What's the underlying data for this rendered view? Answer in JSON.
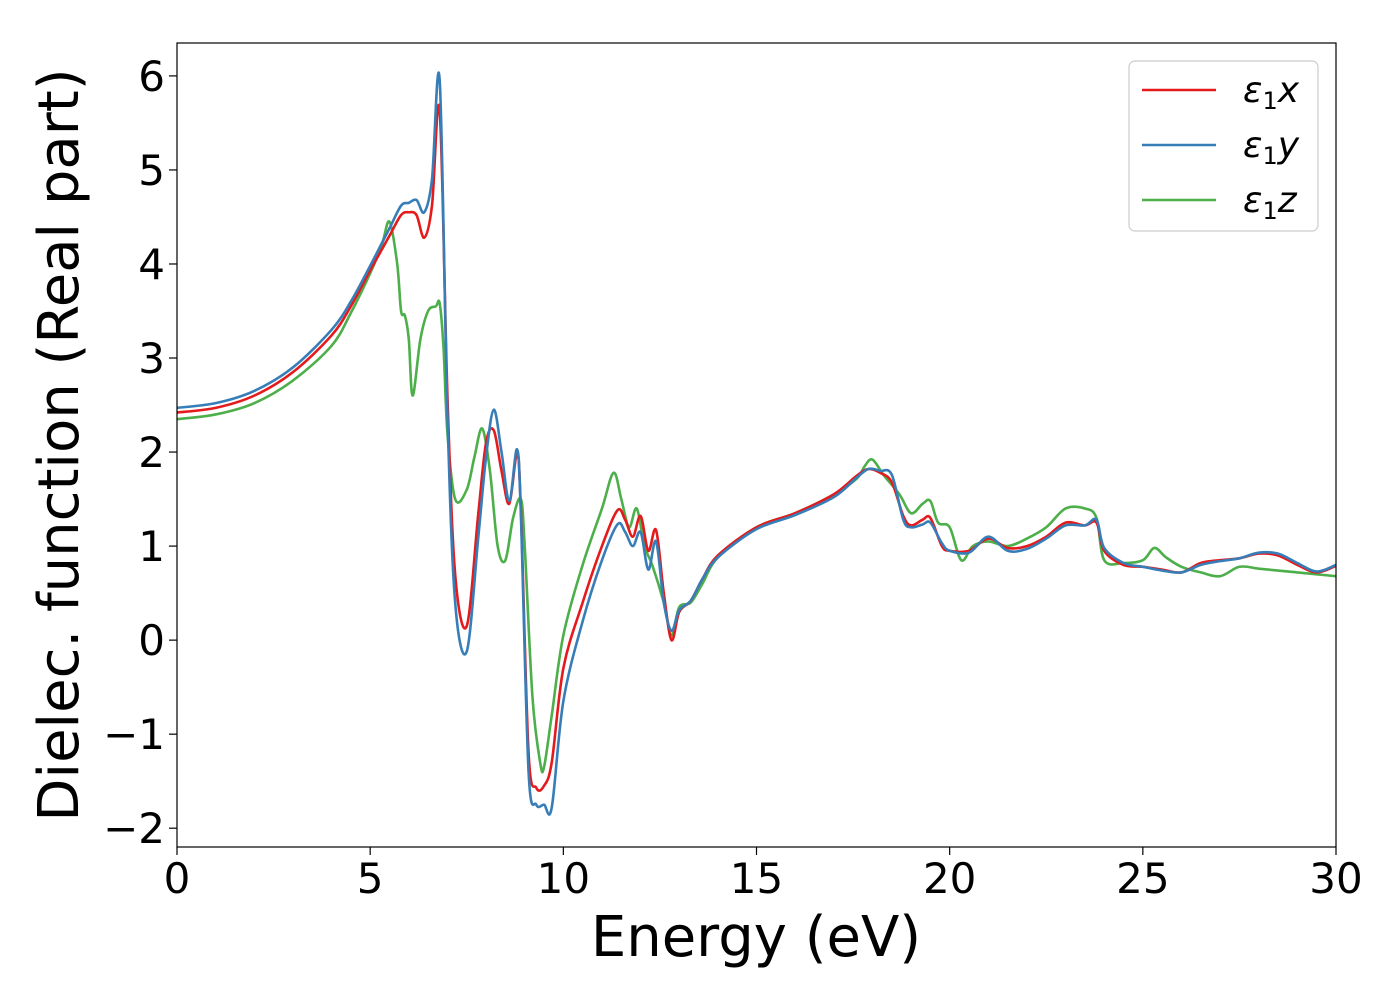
{
  "chart_data": {
    "type": "line",
    "title": "",
    "xlabel": "Energy (eV)",
    "ylabel": "Dielec. function (Real part)",
    "xlim": [
      0,
      30
    ],
    "ylim": [
      -2.2,
      6.35
    ],
    "xticks": [
      0,
      5,
      10,
      15,
      20,
      25,
      30
    ],
    "xtick_labels": [
      "0",
      "5",
      "10",
      "15",
      "20",
      "25",
      "30"
    ],
    "yticks": [
      -2,
      -1,
      0,
      1,
      2,
      3,
      4,
      5,
      6
    ],
    "ytick_labels": [
      "−2",
      "−1",
      "0",
      "1",
      "2",
      "3",
      "4",
      "5",
      "6"
    ],
    "grid": false,
    "legend_position": "top-right",
    "series": [
      {
        "name": "ε₁x",
        "legend_base": "ε",
        "legend_sub": "1",
        "legend_var": "x",
        "color": "#e41a1c",
        "x": [
          0,
          1,
          2,
          3,
          4,
          4.5,
          5,
          5.5,
          5.8,
          6.0,
          6.2,
          6.4,
          6.6,
          6.8,
          7.0,
          7.2,
          7.5,
          7.8,
          8.0,
          8.2,
          8.4,
          8.6,
          8.8,
          8.9,
          9.1,
          9.3,
          9.5,
          9.7,
          10.0,
          10.5,
          11.0,
          11.4,
          11.6,
          11.8,
          12.0,
          12.2,
          12.4,
          12.6,
          12.8,
          13.0,
          13.3,
          13.6,
          14.0,
          15.0,
          16.0,
          17.0,
          17.6,
          17.9,
          18.2,
          18.5,
          18.8,
          19.0,
          19.3,
          19.5,
          19.8,
          20.0,
          20.5,
          21.0,
          21.5,
          22.0,
          22.5,
          23.0,
          23.5,
          23.8,
          24.0,
          24.5,
          25.0,
          25.5,
          26.0,
          26.5,
          27.0,
          27.5,
          28.0,
          28.5,
          29.0,
          29.5,
          30.0
        ],
        "y": [
          2.42,
          2.47,
          2.6,
          2.85,
          3.24,
          3.55,
          3.93,
          4.3,
          4.52,
          4.55,
          4.52,
          4.28,
          4.62,
          5.63,
          2.6,
          0.7,
          0.15,
          1.35,
          2.1,
          2.23,
          1.8,
          1.45,
          1.98,
          1.4,
          -1.2,
          -1.57,
          -1.55,
          -1.3,
          -0.3,
          0.4,
          1.0,
          1.38,
          1.28,
          1.1,
          1.32,
          0.95,
          1.17,
          0.5,
          0.0,
          0.3,
          0.42,
          0.65,
          0.9,
          1.2,
          1.35,
          1.55,
          1.75,
          1.82,
          1.78,
          1.68,
          1.32,
          1.22,
          1.28,
          1.3,
          1.0,
          0.95,
          0.95,
          1.08,
          0.98,
          1.0,
          1.1,
          1.25,
          1.22,
          1.25,
          0.95,
          0.8,
          0.78,
          0.75,
          0.72,
          0.82,
          0.85,
          0.87,
          0.92,
          0.9,
          0.8,
          0.72,
          0.79
        ]
      },
      {
        "name": "ε₁y",
        "legend_base": "ε",
        "legend_sub": "1",
        "legend_var": "y",
        "color": "#377eb8",
        "x": [
          0,
          1,
          2,
          3,
          4,
          4.5,
          5,
          5.5,
          5.8,
          6.0,
          6.2,
          6.4,
          6.6,
          6.8,
          7.0,
          7.2,
          7.5,
          7.8,
          8.0,
          8.2,
          8.4,
          8.6,
          8.8,
          8.9,
          9.1,
          9.3,
          9.5,
          9.7,
          10.0,
          10.5,
          11.0,
          11.4,
          11.6,
          11.8,
          12.0,
          12.2,
          12.4,
          12.6,
          12.8,
          13.0,
          13.3,
          13.6,
          14.0,
          15.0,
          16.0,
          17.0,
          17.6,
          17.9,
          18.2,
          18.5,
          18.8,
          19.0,
          19.3,
          19.5,
          19.8,
          20.0,
          20.5,
          21.0,
          21.5,
          22.0,
          22.5,
          23.0,
          23.5,
          23.8,
          24.0,
          24.5,
          25.0,
          25.5,
          26.0,
          26.5,
          27.0,
          27.5,
          28.0,
          28.5,
          29.0,
          29.5,
          30.0
        ],
        "y": [
          2.47,
          2.52,
          2.65,
          2.9,
          3.3,
          3.6,
          3.98,
          4.38,
          4.62,
          4.65,
          4.68,
          4.55,
          4.9,
          5.95,
          2.4,
          0.4,
          -0.12,
          1.1,
          1.95,
          2.45,
          2.0,
          1.48,
          2.03,
          1.35,
          -1.4,
          -1.75,
          -1.75,
          -1.78,
          -0.65,
          0.2,
          0.85,
          1.23,
          1.15,
          1.0,
          1.15,
          0.75,
          1.05,
          0.4,
          0.1,
          0.32,
          0.42,
          0.65,
          0.88,
          1.18,
          1.33,
          1.52,
          1.73,
          1.82,
          1.8,
          1.76,
          1.28,
          1.2,
          1.23,
          1.25,
          1.03,
          0.95,
          0.93,
          1.1,
          0.95,
          0.97,
          1.08,
          1.22,
          1.22,
          1.28,
          0.98,
          0.82,
          0.78,
          0.74,
          0.72,
          0.8,
          0.84,
          0.87,
          0.93,
          0.92,
          0.82,
          0.73,
          0.8
        ]
      },
      {
        "name": "ε₁z",
        "legend_base": "ε",
        "legend_sub": "1",
        "legend_var": "z",
        "color": "#4daf4a",
        "x": [
          0,
          1,
          2,
          3,
          4,
          4.5,
          5,
          5.3,
          5.5,
          5.7,
          5.8,
          5.9,
          6.0,
          6.1,
          6.3,
          6.5,
          6.7,
          6.8,
          6.9,
          7.0,
          7.2,
          7.5,
          7.7,
          7.9,
          8.1,
          8.3,
          8.5,
          8.7,
          8.9,
          9.0,
          9.2,
          9.4,
          9.5,
          9.7,
          10.0,
          10.5,
          11.0,
          11.3,
          11.5,
          11.7,
          11.9,
          12.1,
          12.3,
          12.6,
          12.8,
          13.0,
          13.3,
          13.6,
          14.0,
          15.0,
          16.0,
          17.0,
          17.6,
          17.8,
          18.0,
          18.3,
          18.7,
          19.0,
          19.3,
          19.5,
          19.7,
          20.0,
          20.3,
          20.6,
          21.0,
          21.5,
          22.0,
          22.5,
          23.0,
          23.5,
          23.8,
          24.0,
          24.5,
          25.0,
          25.3,
          25.6,
          26.0,
          26.5,
          27.0,
          27.5,
          28.0,
          28.5,
          29.0,
          29.5,
          30.0
        ],
        "y": [
          2.35,
          2.4,
          2.52,
          2.76,
          3.13,
          3.48,
          3.9,
          4.2,
          4.45,
          4.0,
          3.5,
          3.45,
          3.2,
          2.6,
          3.2,
          3.5,
          3.55,
          3.58,
          3.1,
          2.2,
          1.5,
          1.6,
          1.95,
          2.25,
          1.8,
          1.0,
          0.85,
          1.3,
          1.5,
          1.0,
          -0.6,
          -1.3,
          -1.35,
          -0.8,
          0.05,
          0.8,
          1.4,
          1.78,
          1.5,
          1.2,
          1.4,
          1.0,
          0.8,
          0.4,
          0.05,
          0.35,
          0.4,
          0.6,
          0.88,
          1.2,
          1.35,
          1.55,
          1.72,
          1.85,
          1.92,
          1.75,
          1.55,
          1.35,
          1.45,
          1.48,
          1.25,
          1.2,
          0.85,
          1.0,
          1.05,
          1.0,
          1.08,
          1.2,
          1.4,
          1.4,
          1.3,
          0.85,
          0.82,
          0.85,
          0.98,
          0.88,
          0.78,
          0.72,
          0.68,
          0.78,
          0.76,
          0.74,
          0.72,
          0.7,
          0.68
        ]
      }
    ]
  }
}
